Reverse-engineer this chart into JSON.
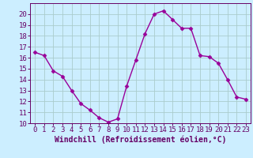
{
  "x": [
    0,
    1,
    2,
    3,
    4,
    5,
    6,
    7,
    8,
    9,
    10,
    11,
    12,
    13,
    14,
    15,
    16,
    17,
    18,
    19,
    20,
    21,
    22,
    23
  ],
  "y": [
    16.5,
    16.2,
    14.8,
    14.3,
    13.0,
    11.8,
    11.2,
    10.5,
    10.1,
    10.4,
    13.4,
    15.8,
    18.2,
    20.0,
    20.3,
    19.5,
    18.7,
    18.7,
    16.2,
    16.1,
    15.5,
    14.0,
    12.4,
    12.2
  ],
  "line_color": "#990099",
  "marker": "D",
  "markersize": 2.5,
  "linewidth": 1.0,
  "bg_color": "#cceeff",
  "grid_color": "#aacccc",
  "xlabel": "Windchill (Refroidissement éolien,°C)",
  "xlabel_fontsize": 7,
  "tick_fontsize": 6.5,
  "xlim": [
    -0.5,
    23.5
  ],
  "ylim": [
    10,
    21
  ],
  "yticks": [
    10,
    11,
    12,
    13,
    14,
    15,
    16,
    17,
    18,
    19,
    20
  ],
  "xticks": [
    0,
    1,
    2,
    3,
    4,
    5,
    6,
    7,
    8,
    9,
    10,
    11,
    12,
    13,
    14,
    15,
    16,
    17,
    18,
    19,
    20,
    21,
    22,
    23
  ],
  "text_color": "#660066",
  "spine_color": "#660066"
}
